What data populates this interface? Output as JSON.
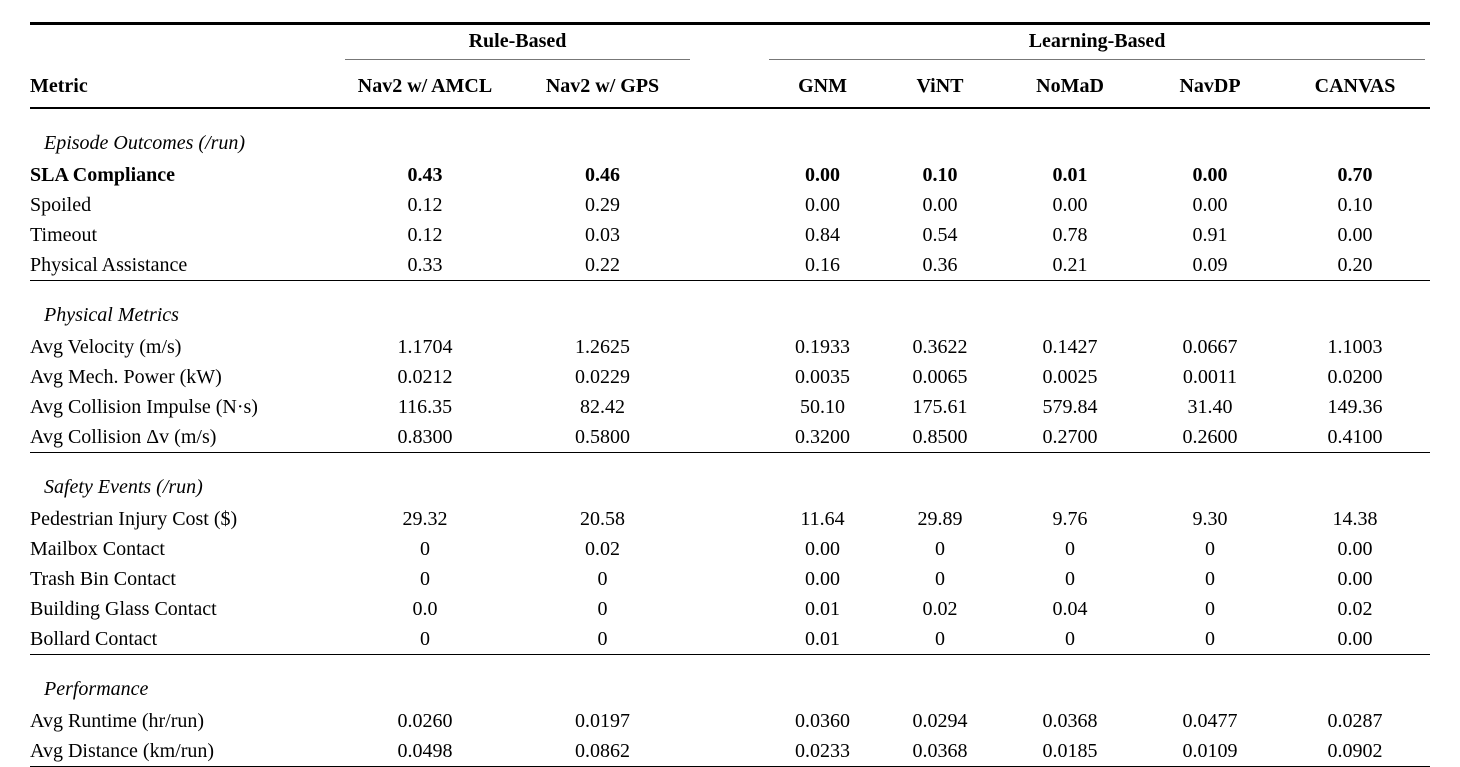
{
  "table": {
    "groups": {
      "rule_based": "Rule-Based",
      "learning_based": "Learning-Based"
    },
    "columns": {
      "metric": "Metric",
      "cols": [
        "Nav2 w/ AMCL",
        "Nav2 w/ GPS",
        "GNM",
        "ViNT",
        "NoMaD",
        "NavDP",
        "CANVAS"
      ]
    },
    "sections": [
      {
        "title": "Episode Outcomes (/run)",
        "rows": [
          {
            "metric": "SLA Compliance",
            "bold": true,
            "values": [
              "0.43",
              "0.46",
              "0.00",
              "0.10",
              "0.01",
              "0.00",
              "0.70"
            ]
          },
          {
            "metric": "Spoiled",
            "bold": false,
            "values": [
              "0.12",
              "0.29",
              "0.00",
              "0.00",
              "0.00",
              "0.00",
              "0.10"
            ]
          },
          {
            "metric": "Timeout",
            "bold": false,
            "values": [
              "0.12",
              "0.03",
              "0.84",
              "0.54",
              "0.78",
              "0.91",
              "0.00"
            ]
          },
          {
            "metric": "Physical Assistance",
            "bold": false,
            "values": [
              "0.33",
              "0.22",
              "0.16",
              "0.36",
              "0.21",
              "0.09",
              "0.20"
            ]
          }
        ]
      },
      {
        "title": "Physical Metrics",
        "rows": [
          {
            "metric": "Avg Velocity (m/s)",
            "bold": false,
            "values": [
              "1.1704",
              "1.2625",
              "0.1933",
              "0.3622",
              "0.1427",
              "0.0667",
              "1.1003"
            ]
          },
          {
            "metric": "Avg Mech. Power (kW)",
            "bold": false,
            "values": [
              "0.0212",
              "0.0229",
              "0.0035",
              "0.0065",
              "0.0025",
              "0.0011",
              "0.0200"
            ]
          },
          {
            "metric": "Avg Collision Impulse (N·s)",
            "bold": false,
            "values": [
              "116.35",
              "82.42",
              "50.10",
              "175.61",
              "579.84",
              "31.40",
              "149.36"
            ]
          },
          {
            "metric": "Avg Collision Δv (m/s)",
            "bold": false,
            "values": [
              "0.8300",
              "0.5800",
              "0.3200",
              "0.8500",
              "0.2700",
              "0.2600",
              "0.4100"
            ]
          }
        ]
      },
      {
        "title": "Safety Events (/run)",
        "rows": [
          {
            "metric": "Pedestrian Injury Cost ($)",
            "bold": false,
            "values": [
              "29.32",
              "20.58",
              "11.64",
              "29.89",
              "9.76",
              "9.30",
              "14.38"
            ]
          },
          {
            "metric": "Mailbox Contact",
            "bold": false,
            "values": [
              "0",
              "0.02",
              "0.00",
              "0",
              "0",
              "0",
              "0.00"
            ]
          },
          {
            "metric": "Trash Bin Contact",
            "bold": false,
            "values": [
              "0",
              "0",
              "0.00",
              "0",
              "0",
              "0",
              "0.00"
            ]
          },
          {
            "metric": "Building Glass Contact",
            "bold": false,
            "values": [
              "0.0",
              "0",
              "0.01",
              "0.02",
              "0.04",
              "0",
              "0.02"
            ]
          },
          {
            "metric": "Bollard Contact",
            "bold": false,
            "values": [
              "0",
              "0",
              "0.01",
              "0",
              "0",
              "0",
              "0.00"
            ]
          }
        ]
      },
      {
        "title": "Performance",
        "rows": [
          {
            "metric": "Avg Runtime (hr/run)",
            "bold": false,
            "values": [
              "0.0260",
              "0.0197",
              "0.0360",
              "0.0294",
              "0.0368",
              "0.0477",
              "0.0287"
            ]
          },
          {
            "metric": "Avg Distance (km/run)",
            "bold": false,
            "values": [
              "0.0498",
              "0.0862",
              "0.0233",
              "0.0368",
              "0.0185",
              "0.0109",
              "0.0902"
            ]
          }
        ]
      }
    ]
  }
}
